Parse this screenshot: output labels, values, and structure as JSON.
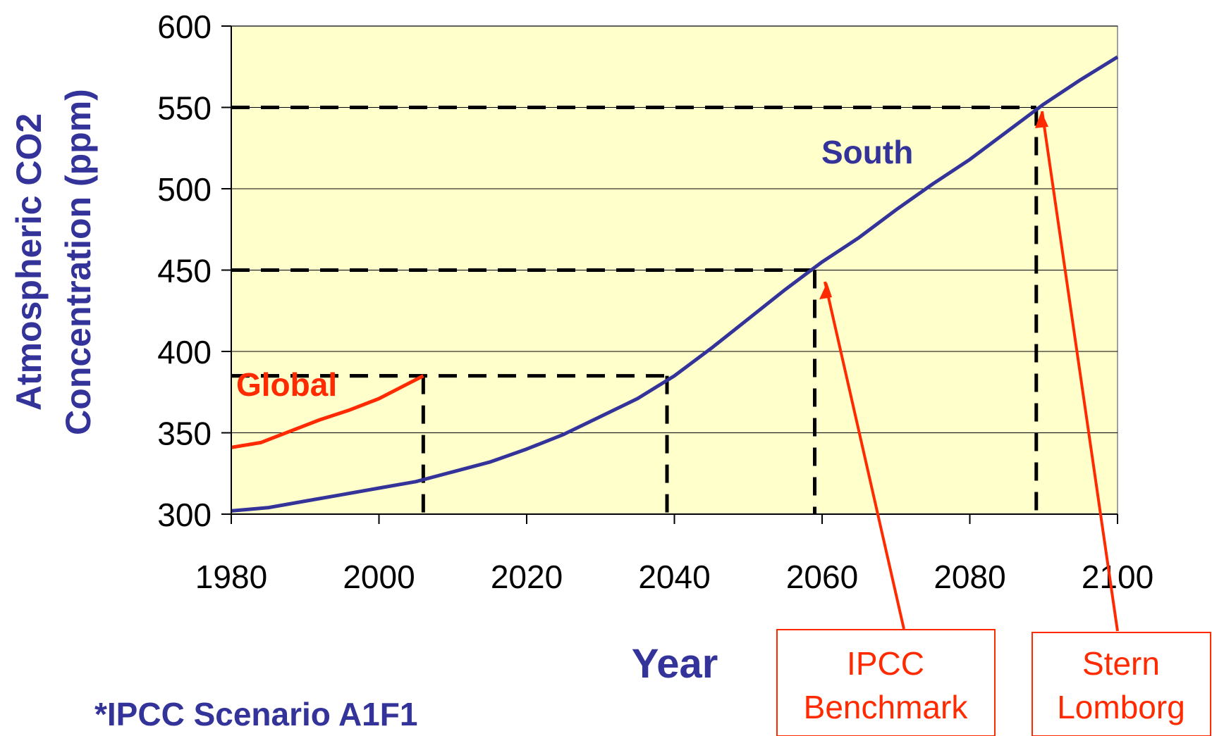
{
  "chart_data": {
    "type": "line",
    "xlabel": "Year",
    "ylabel_line1": "Atmospheric CO2",
    "ylabel_line2": "Concentration (ppm)",
    "xlim": [
      1980,
      2100
    ],
    "ylim": [
      300,
      600
    ],
    "x_ticks": [
      1980,
      2000,
      2020,
      2040,
      2060,
      2080,
      2100
    ],
    "y_ticks": [
      300,
      350,
      400,
      450,
      500,
      550,
      600
    ],
    "grid": "horizontal",
    "series": [
      {
        "name": "Global",
        "color": "#ff2a00",
        "x": [
          1980,
          1984,
          1988,
          1992,
          1996,
          2000,
          2003,
          2006
        ],
        "y": [
          341,
          344,
          351,
          358,
          364,
          371,
          378,
          385
        ]
      },
      {
        "name": "South",
        "color": "#333399",
        "x": [
          1980,
          1985,
          1990,
          1995,
          2000,
          2005,
          2010,
          2015,
          2020,
          2025,
          2030,
          2035,
          2040,
          2045,
          2050,
          2055,
          2060,
          2065,
          2070,
          2075,
          2080,
          2085,
          2090,
          2095,
          2100
        ],
        "y": [
          302,
          304,
          308,
          312,
          316,
          320,
          326,
          332,
          340,
          349,
          360,
          371,
          385,
          402,
          420,
          438,
          455,
          470,
          487,
          503,
          518,
          535,
          552,
          567,
          581
        ]
      }
    ],
    "reference_lines": [
      {
        "x": 2006,
        "y": 385
      },
      {
        "x": 2039,
        "y": 385
      },
      {
        "x": 2059,
        "y": 450
      },
      {
        "x": 2089,
        "y": 550
      }
    ],
    "annotations": [
      {
        "lines": [
          "IPCC",
          "Benchmark"
        ],
        "color": "#ff2a00",
        "points_to": {
          "x": 2060,
          "y": 447
        }
      },
      {
        "lines": [
          "Stern",
          "Lomborg"
        ],
        "color": "#ff2a00",
        "points_to": {
          "x": 2090,
          "y": 548
        }
      }
    ],
    "footnote": "*IPCC Scenario A1F1"
  },
  "colors": {
    "plot_background": "#ffffcc",
    "axis_title": "#333399",
    "global": "#ff2a00",
    "south": "#333399",
    "reference": "#000000",
    "annotation": "#ff2a00"
  }
}
